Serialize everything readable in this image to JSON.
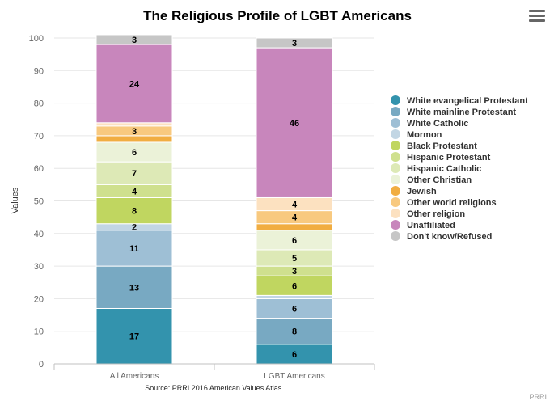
{
  "menu_icon": "hamburger-menu-icon",
  "chart_data": {
    "type": "bar",
    "stacked": true,
    "title": "The Religious Profile of LGBT Americans",
    "ylabel": "Values",
    "ylim": [
      0,
      100
    ],
    "yticks": [
      0,
      10,
      20,
      30,
      40,
      50,
      60,
      70,
      80,
      90,
      100
    ],
    "categories": [
      "All Americans",
      "LGBT Americans"
    ],
    "legend_position": "right",
    "series": [
      {
        "name": "White evangelical Protestant",
        "color": "#3393ad",
        "values": [
          17,
          6
        ],
        "labels": [
          "17",
          "6"
        ]
      },
      {
        "name": "White mainline Protestant",
        "color": "#78a9c2",
        "values": [
          13,
          8
        ],
        "labels": [
          "13",
          "8"
        ]
      },
      {
        "name": "White Catholic",
        "color": "#9ebfd5",
        "values": [
          11,
          6
        ],
        "labels": [
          "11",
          "6"
        ]
      },
      {
        "name": "Mormon",
        "color": "#c2d6e4",
        "values": [
          2,
          1
        ],
        "labels": [
          "2",
          ""
        ]
      },
      {
        "name": "Black Protestant",
        "color": "#c0d660",
        "values": [
          8,
          6
        ],
        "labels": [
          "8",
          "6"
        ]
      },
      {
        "name": "Hispanic Protestant",
        "color": "#cfe08e",
        "values": [
          4,
          3
        ],
        "labels": [
          "4",
          "3"
        ]
      },
      {
        "name": "Hispanic Catholic",
        "color": "#dde9b6",
        "values": [
          7,
          5
        ],
        "labels": [
          "7",
          "5"
        ]
      },
      {
        "name": "Other Christian",
        "color": "#ebf2d8",
        "values": [
          6,
          6
        ],
        "labels": [
          "6",
          "6"
        ]
      },
      {
        "name": "Jewish",
        "color": "#f1ad41",
        "values": [
          2,
          2
        ],
        "labels": [
          "",
          ""
        ]
      },
      {
        "name": "Other world religions",
        "color": "#f8c97f",
        "values": [
          3,
          4
        ],
        "labels": [
          "3",
          "4"
        ]
      },
      {
        "name": "Other religion",
        "color": "#fce1c0",
        "values": [
          1,
          4
        ],
        "labels": [
          "",
          "4"
        ]
      },
      {
        "name": "Unaffiliated",
        "color": "#c886bc",
        "values": [
          24,
          46
        ],
        "labels": [
          "24",
          "46"
        ]
      },
      {
        "name": "Don't know/Refused",
        "color": "#c6c6c6",
        "values": [
          3,
          3
        ],
        "labels": [
          "3",
          "3"
        ]
      }
    ],
    "source": "Source: PRRI 2016 American Values Atlas.",
    "credit": "PRRI"
  }
}
